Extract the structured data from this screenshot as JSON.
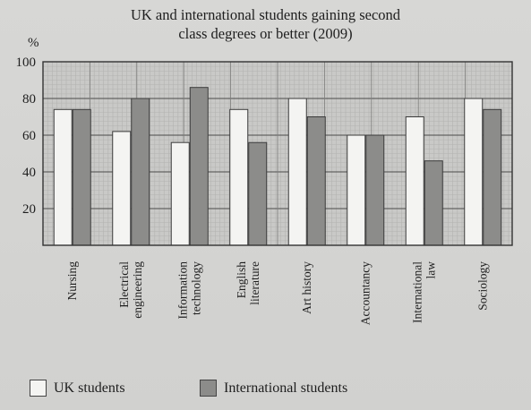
{
  "chart_data": {
    "type": "bar",
    "title_lines": [
      "UK and international students gaining second",
      "class degrees or better (2009)"
    ],
    "ylabel": "%",
    "xlabel": "",
    "ylim": [
      0,
      100
    ],
    "yticks": [
      20,
      40,
      60,
      80,
      100
    ],
    "grid": true,
    "legend_placement": "bottom",
    "categories": [
      [
        "Nursing"
      ],
      [
        "Electrical",
        "engineering"
      ],
      [
        "Information",
        "technology"
      ],
      [
        "English",
        "literature"
      ],
      [
        "Art history"
      ],
      [
        "Accountancy"
      ],
      [
        "International",
        "law"
      ],
      [
        "Sociology"
      ]
    ],
    "series": [
      {
        "name": "UK students",
        "values": [
          74,
          62,
          56,
          74,
          80,
          60,
          70,
          80
        ],
        "color": "#f4f4f2"
      },
      {
        "name": "International students",
        "values": [
          74,
          80,
          86,
          56,
          70,
          60,
          46,
          74
        ],
        "color": "#8c8c8a"
      }
    ]
  }
}
